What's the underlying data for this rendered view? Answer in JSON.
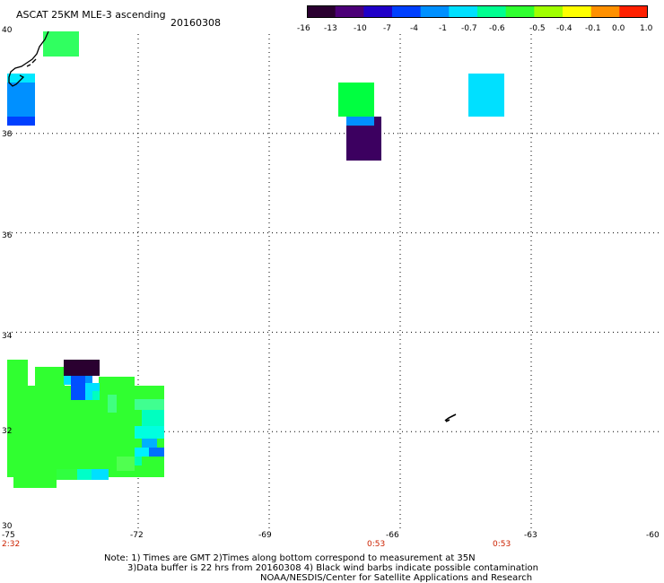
{
  "header": {
    "product_title": "ASCAT 25KM MLE-3 ascending",
    "date": "20160308"
  },
  "colorbar": {
    "labels": [
      "-16",
      "-13",
      "-10",
      "-7",
      "-4",
      "-1",
      "-0.7",
      "-0.6",
      "-0.5",
      "-0.4",
      "-0.1",
      "0.0",
      "1.0"
    ],
    "colors": [
      "#2a0030",
      "#4c0078",
      "#2000c8",
      "#0040ff",
      "#0090ff",
      "#00e0ff",
      "#00ff90",
      "#30ff30",
      "#a0ff00",
      "#ffff00",
      "#ff9000",
      "#ff2000"
    ]
  },
  "chart_data": {
    "type": "heatmap",
    "x_range": [
      -75,
      -60
    ],
    "y_range": [
      30,
      40
    ],
    "x_ticks": [
      "-75",
      "-72",
      "-69",
      "-66",
      "-63",
      "-60"
    ],
    "y_ticks": [
      "40",
      "38",
      "36",
      "34",
      "32",
      "30"
    ],
    "grid": true,
    "time_labels": [
      "2:32",
      "0:53",
      "0:53"
    ]
  },
  "footer": {
    "note_line1": "Note: 1) Times are GMT 2)Times along bottom correspond to measurement at 35N",
    "note_line2": "3)Data buffer is 22 hrs from 20160308 4) Black wind barbs indicate possible contamination",
    "credit": "NOAA/NESDIS/Center for Satellite Applications and Research"
  }
}
